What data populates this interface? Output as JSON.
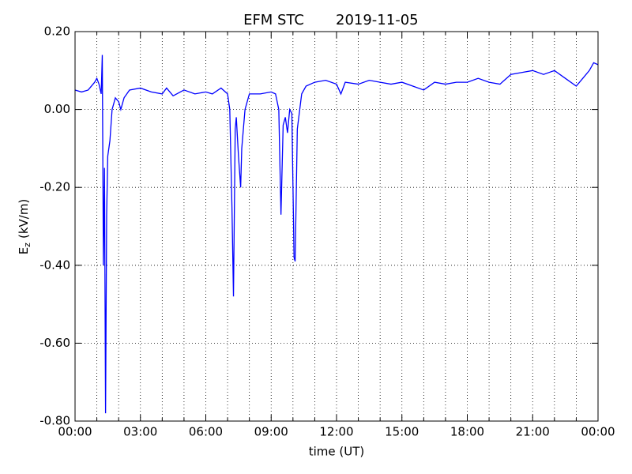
{
  "chart_data": {
    "type": "line",
    "title": "EFM STC",
    "subtitle": "2019-11-05",
    "xlabel": "time (UT)",
    "ylabel": {
      "main": "E",
      "sub": "z",
      "rest": "(kV/m)"
    },
    "color": "#0000ff",
    "grid": true,
    "xlim": [
      0,
      24
    ],
    "xticks": [
      {
        "value": 0,
        "label": "00:00"
      },
      {
        "value": 3,
        "label": "03:00"
      },
      {
        "value": 6,
        "label": "06:00"
      },
      {
        "value": 9,
        "label": "09:00"
      },
      {
        "value": 12,
        "label": "12:00"
      },
      {
        "value": 15,
        "label": "15:00"
      },
      {
        "value": 18,
        "label": "18:00"
      },
      {
        "value": 21,
        "label": "21:00"
      },
      {
        "value": 24,
        "label": "00:00"
      }
    ],
    "xminorticks": [
      1,
      2,
      4,
      5,
      7,
      8,
      10,
      11,
      13,
      14,
      16,
      17,
      19,
      20,
      22,
      23
    ],
    "ylim": [
      -0.8,
      0.2
    ],
    "yticks": [
      {
        "value": 0.2,
        "label": "0.20"
      },
      {
        "value": 0,
        "label": "0.00"
      },
      {
        "value": -0.2,
        "label": "-0.20"
      },
      {
        "value": -0.4,
        "label": "-0.40"
      },
      {
        "value": -0.6,
        "label": "-0.60"
      },
      {
        "value": -0.8,
        "label": "-0.80"
      }
    ],
    "x": [
      0,
      0.3,
      0.6,
      0.9,
      1.0,
      1.1,
      1.2,
      1.25,
      1.3,
      1.35,
      1.4,
      1.45,
      1.5,
      1.6,
      1.7,
      1.85,
      2.0,
      2.1,
      2.25,
      2.5,
      3.0,
      3.5,
      4.0,
      4.2,
      4.5,
      5.0,
      5.5,
      6.0,
      6.3,
      6.7,
      7.0,
      7.1,
      7.2,
      7.27,
      7.35,
      7.4,
      7.5,
      7.6,
      7.65,
      7.8,
      8.0,
      8.5,
      9.0,
      9.2,
      9.35,
      9.45,
      9.55,
      9.65,
      9.75,
      9.85,
      9.95,
      10.05,
      10.1,
      10.2,
      10.4,
      10.6,
      11.0,
      11.5,
      12.0,
      12.2,
      12.4,
      13.0,
      13.5,
      14.0,
      14.5,
      15.0,
      15.5,
      16.0,
      16.5,
      17.0,
      17.5,
      18.0,
      18.5,
      19.0,
      19.5,
      20.0,
      20.5,
      21.0,
      21.5,
      22.0,
      22.5,
      23.0,
      23.3,
      23.6,
      23.8,
      24.0
    ],
    "values": [
      0.05,
      0.045,
      0.05,
      0.07,
      0.08,
      0.065,
      0.04,
      0.14,
      -0.4,
      -0.15,
      -0.78,
      -0.27,
      -0.12,
      -0.08,
      0.0,
      0.03,
      0.02,
      0.0,
      0.03,
      0.05,
      0.055,
      0.045,
      0.04,
      0.055,
      0.035,
      0.05,
      0.04,
      0.045,
      0.04,
      0.055,
      0.04,
      0.0,
      -0.25,
      -0.48,
      -0.05,
      -0.02,
      -0.12,
      -0.2,
      -0.1,
      0.0,
      0.04,
      0.04,
      0.045,
      0.04,
      0.0,
      -0.27,
      -0.04,
      -0.02,
      -0.06,
      0.0,
      -0.01,
      -0.38,
      -0.39,
      -0.05,
      0.04,
      0.06,
      0.07,
      0.075,
      0.065,
      0.04,
      0.07,
      0.065,
      0.075,
      0.07,
      0.065,
      0.07,
      0.06,
      0.05,
      0.07,
      0.065,
      0.07,
      0.07,
      0.08,
      0.07,
      0.065,
      0.09,
      0.095,
      0.1,
      0.09,
      0.1,
      0.08,
      0.06,
      0.08,
      0.1,
      0.12,
      0.115
    ]
  }
}
